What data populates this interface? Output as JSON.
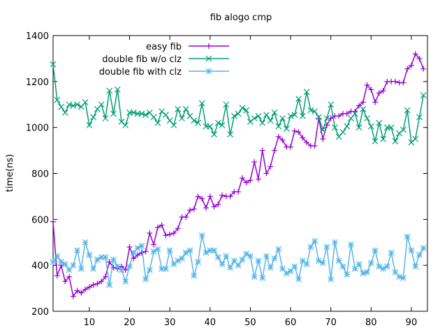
{
  "chart_data": {
    "type": "line",
    "title": "fib alogo cmp",
    "xlabel": "",
    "ylabel": "time(ns)",
    "xlim": [
      1,
      94
    ],
    "ylim": [
      200,
      1400
    ],
    "xticks": [
      10,
      20,
      30,
      40,
      50,
      60,
      70,
      80,
      90
    ],
    "yticks": [
      200,
      400,
      600,
      800,
      1000,
      1200,
      1400
    ],
    "grid": false,
    "legend_position": "top-center",
    "series": [
      {
        "name": "easy fib",
        "color": "#9400d3",
        "marker": "plus",
        "values": [
          590,
          355,
          400,
          330,
          350,
          265,
          290,
          280,
          295,
          305,
          315,
          320,
          330,
          350,
          415,
          390,
          385,
          395,
          380,
          480,
          430,
          445,
          455,
          460,
          540,
          490,
          565,
          575,
          530,
          535,
          540,
          560,
          610,
          610,
          640,
          645,
          700,
          690,
          650,
          700,
          655,
          665,
          705,
          700,
          700,
          720,
          720,
          780,
          760,
          770,
          850,
          775,
          900,
          800,
          830,
          900,
          960,
          945,
          915,
          915,
          985,
          980,
          955,
          935,
          920,
          920,
          1040,
          950,
          1010,
          1040,
          1050,
          1050,
          1060,
          1060,
          1070,
          1070,
          1095,
          1110,
          1185,
          1165,
          1110,
          1150,
          1160,
          1200,
          1200,
          1200,
          1195,
          1195,
          1255,
          1270,
          1320,
          1300,
          1255
        ]
      },
      {
        "name": "double fib w/o clz",
        "color": "#009e73",
        "marker": "cross",
        "values": [
          1275,
          1120,
          1090,
          1065,
          1100,
          1095,
          1100,
          1090,
          1110,
          1010,
          1045,
          1080,
          1100,
          1040,
          1160,
          1060,
          1165,
          1025,
          1010,
          1065,
          1065,
          1060,
          1060,
          1055,
          1065,
          1045,
          1020,
          1070,
          1055,
          1030,
          1010,
          1080,
          1040,
          1080,
          1050,
          1030,
          1020,
          1105,
          1005,
          1005,
          970,
          1020,
          1010,
          1100,
          970,
          1050,
          1060,
          1085,
          1075,
          1025,
          1040,
          1050,
          1020,
          1055,
          1030,
          1065,
          1005,
          1040,
          995,
          1050,
          1055,
          1125,
          1050,
          1155,
          1075,
          1070,
          1045,
          990,
          1040,
          1100,
          1000,
          960,
          980,
          1005,
          1040,
          1060,
          1000,
          1080,
          1040,
          1005,
          940,
          1020,
          950,
          1000,
          1000,
          940,
          975,
          990,
          1075,
          935,
          950,
          1045,
          1140
        ]
      },
      {
        "name": "double fib with clz",
        "color": "#56b4e9",
        "marker": "star",
        "values": [
          415,
          440,
          415,
          405,
          380,
          400,
          465,
          385,
          500,
          445,
          385,
          425,
          435,
          435,
          315,
          425,
          395,
          380,
          330,
          395,
          455,
          475,
          485,
          340,
          380,
          460,
          470,
          385,
          385,
          465,
          405,
          420,
          430,
          455,
          465,
          355,
          415,
          530,
          455,
          465,
          465,
          435,
          405,
          440,
          390,
          420,
          400,
          425,
          450,
          440,
          350,
          420,
          345,
          440,
          390,
          430,
          470,
          385,
          365,
          375,
          395,
          340,
          420,
          405,
          480,
          505,
          420,
          410,
          480,
          340,
          500,
          420,
          395,
          360,
          490,
          385,
          405,
          365,
          370,
          410,
          465,
          395,
          385,
          395,
          455,
          370,
          350,
          345,
          525,
          465,
          395,
          445,
          475
        ]
      }
    ]
  }
}
